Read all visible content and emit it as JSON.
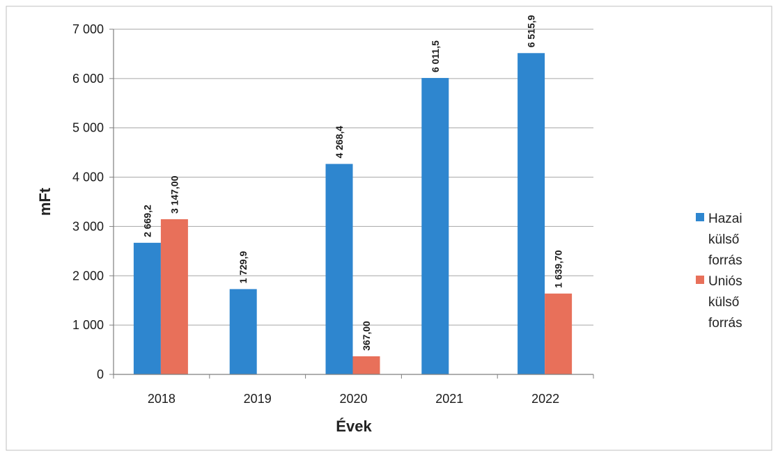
{
  "chart_data": {
    "type": "bar",
    "title": "",
    "xlabel": "Évek",
    "ylabel": "mFt",
    "categories": [
      "2018",
      "2019",
      "2020",
      "2021",
      "2022"
    ],
    "ylim": [
      0,
      7000
    ],
    "yticks": [
      0,
      1000,
      2000,
      3000,
      4000,
      5000,
      6000,
      7000
    ],
    "ytick_labels": [
      "0",
      "1 000",
      "2 000",
      "3 000",
      "4 000",
      "5 000",
      "6 000",
      "7 000"
    ],
    "grid": "horizontal",
    "legend_position": "right",
    "series": [
      {
        "name": "Hazai külső forrás",
        "legend_lines": [
          "Hazai",
          "külső",
          "forrás"
        ],
        "color": "#2e86cf",
        "values": [
          2669.2,
          1729.9,
          4268.4,
          6011.5,
          6515.9
        ],
        "labels": [
          "2 669,2",
          "1 729,9",
          "4 268,4",
          "6 011,5",
          "6 515,9"
        ]
      },
      {
        "name": "Uniós külső forrás",
        "legend_lines": [
          "Uniós",
          "külső",
          "forrás"
        ],
        "color": "#e8705a",
        "values": [
          3147.0,
          null,
          367.0,
          null,
          1639.7
        ],
        "labels": [
          "3 147,00",
          null,
          "367,00",
          null,
          "1 639,70"
        ]
      }
    ]
  }
}
